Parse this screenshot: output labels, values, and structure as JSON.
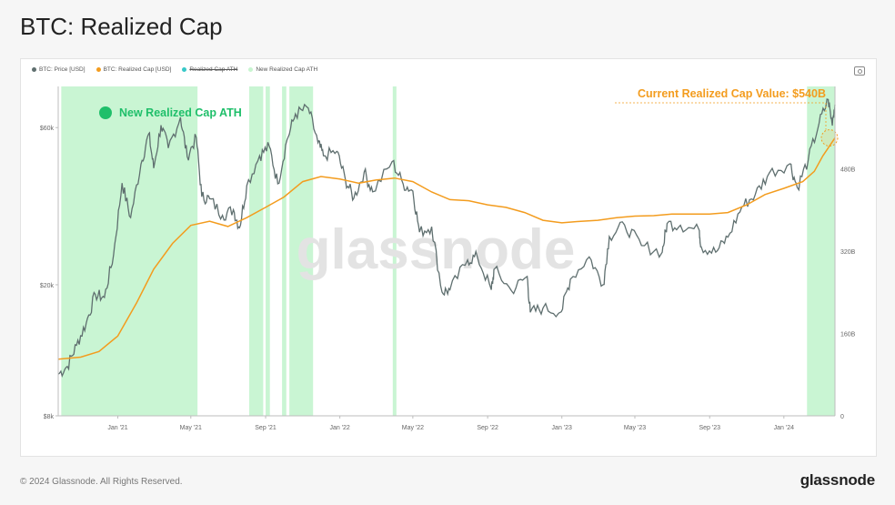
{
  "page": {
    "title": "BTC: Realized Cap",
    "copyright": "© 2024 Glassnode. All Rights Reserved.",
    "logo_text": "glassnode",
    "watermark": "glassnode"
  },
  "legend": [
    {
      "label": "BTC: Price [USD]",
      "color": "#5f6f6f",
      "strike": false
    },
    {
      "label": "BTC: Realized Cap [USD]",
      "color": "#f39c1e",
      "strike": false
    },
    {
      "label": "Realized Cap ATH",
      "color": "#38c8c8",
      "strike": true
    },
    {
      "label": "New Realized Cap ATH",
      "color": "#c8f5d0",
      "strike": false
    }
  ],
  "annotations": {
    "ath_label": "New Realized Cap ATH",
    "current_value_label": "Current Realized Cap Value: $540B"
  },
  "colors": {
    "price": "#5f6f6f",
    "realized_cap": "#f39c1e",
    "ath_band": "#c9f5d3",
    "ath_dot": "#1fbf6a",
    "highlight": "#f39c1e"
  },
  "chart_data": {
    "type": "line",
    "x_range": [
      "2020-09-25",
      "2024-03-25"
    ],
    "x_ticks": [
      "Jan '21",
      "May '21",
      "Sep '21",
      "Jan '22",
      "May '22",
      "Sep '22",
      "Jan '23",
      "May '23",
      "Sep '23",
      "Jan '24"
    ],
    "x_tick_dates": [
      "2021-01-01",
      "2021-05-01",
      "2021-09-01",
      "2022-01-01",
      "2022-05-01",
      "2022-09-01",
      "2023-01-01",
      "2023-05-01",
      "2023-09-01",
      "2024-01-01"
    ],
    "y_left": {
      "scale": "log",
      "range": [
        8000,
        80000
      ],
      "ticks": [
        8000,
        20000,
        60000
      ],
      "tick_labels": [
        "$8k",
        "$20k",
        "$60k"
      ]
    },
    "y_right": {
      "scale": "linear",
      "range": [
        0,
        640
      ],
      "ticks": [
        0,
        160,
        320,
        480
      ],
      "tick_labels": [
        "0",
        "160B",
        "320B",
        "480B"
      ]
    },
    "series": [
      {
        "name": "BTC: Price [USD]",
        "axis": "left",
        "points": [
          [
            "2020-09-25",
            10700
          ],
          [
            "2020-10-10",
            11300
          ],
          [
            "2020-10-25",
            13100
          ],
          [
            "2020-11-10",
            15300
          ],
          [
            "2020-11-25",
            18700
          ],
          [
            "2020-12-10",
            18300
          ],
          [
            "2020-12-25",
            24700
          ],
          [
            "2021-01-08",
            40700
          ],
          [
            "2021-01-22",
            32000
          ],
          [
            "2021-02-08",
            46500
          ],
          [
            "2021-02-21",
            57500
          ],
          [
            "2021-03-01",
            45200
          ],
          [
            "2021-03-13",
            61000
          ],
          [
            "2021-03-25",
            52000
          ],
          [
            "2021-04-14",
            64500
          ],
          [
            "2021-04-25",
            49000
          ],
          [
            "2021-05-10",
            56000
          ],
          [
            "2021-05-19",
            37000
          ],
          [
            "2021-06-01",
            36500
          ],
          [
            "2021-06-22",
            32500
          ],
          [
            "2021-07-10",
            33800
          ],
          [
            "2021-07-20",
            29800
          ],
          [
            "2021-08-01",
            40000
          ],
          [
            "2021-08-22",
            49300
          ],
          [
            "2021-09-07",
            52600
          ],
          [
            "2021-09-21",
            40500
          ],
          [
            "2021-10-06",
            55000
          ],
          [
            "2021-10-20",
            66000
          ],
          [
            "2021-11-10",
            68800
          ],
          [
            "2021-11-26",
            54000
          ],
          [
            "2021-12-05",
            49300
          ],
          [
            "2021-12-27",
            50800
          ],
          [
            "2022-01-10",
            41800
          ],
          [
            "2022-01-24",
            36600
          ],
          [
            "2022-02-10",
            44000
          ],
          [
            "2022-02-24",
            38300
          ],
          [
            "2022-03-28",
            47300
          ],
          [
            "2022-04-15",
            40500
          ],
          [
            "2022-05-01",
            38500
          ],
          [
            "2022-05-12",
            28900
          ],
          [
            "2022-06-01",
            30000
          ],
          [
            "2022-06-18",
            19000
          ],
          [
            "2022-07-01",
            19300
          ],
          [
            "2022-07-30",
            23800
          ],
          [
            "2022-08-15",
            24300
          ],
          [
            "2022-09-07",
            19300
          ],
          [
            "2022-09-12",
            22300
          ],
          [
            "2022-10-10",
            19200
          ],
          [
            "2022-11-05",
            21200
          ],
          [
            "2022-11-10",
            16500
          ],
          [
            "2022-12-01",
            17000
          ],
          [
            "2022-12-31",
            16550
          ],
          [
            "2023-01-15",
            20800
          ],
          [
            "2023-02-15",
            24300
          ],
          [
            "2023-03-10",
            20000
          ],
          [
            "2023-03-20",
            28000
          ],
          [
            "2023-04-14",
            30400
          ],
          [
            "2023-05-12",
            26300
          ],
          [
            "2023-06-15",
            25100
          ],
          [
            "2023-06-23",
            30700
          ],
          [
            "2023-07-15",
            30300
          ],
          [
            "2023-08-15",
            29200
          ],
          [
            "2023-08-18",
            26100
          ],
          [
            "2023-09-11",
            25100
          ],
          [
            "2023-10-01",
            27900
          ],
          [
            "2023-10-24",
            34500
          ],
          [
            "2023-11-15",
            37600
          ],
          [
            "2023-12-08",
            43700
          ],
          [
            "2024-01-11",
            46600
          ],
          [
            "2024-01-23",
            39500
          ],
          [
            "2024-02-10",
            47800
          ],
          [
            "2024-02-28",
            62000
          ],
          [
            "2024-03-14",
            73000
          ],
          [
            "2024-03-20",
            62000
          ],
          [
            "2024-03-25",
            70500
          ]
        ]
      },
      {
        "name": "BTC: Realized Cap [USD]",
        "axis": "right",
        "points": [
          [
            "2020-09-25",
            110
          ],
          [
            "2020-11-01",
            114
          ],
          [
            "2020-12-01",
            125
          ],
          [
            "2021-01-01",
            155
          ],
          [
            "2021-02-01",
            220
          ],
          [
            "2021-03-01",
            285
          ],
          [
            "2021-04-01",
            335
          ],
          [
            "2021-05-01",
            370
          ],
          [
            "2021-06-01",
            378
          ],
          [
            "2021-07-01",
            368
          ],
          [
            "2021-08-01",
            385
          ],
          [
            "2021-09-01",
            405
          ],
          [
            "2021-10-01",
            425
          ],
          [
            "2021-11-01",
            455
          ],
          [
            "2021-12-01",
            465
          ],
          [
            "2022-01-01",
            460
          ],
          [
            "2022-02-01",
            452
          ],
          [
            "2022-03-01",
            458
          ],
          [
            "2022-04-01",
            462
          ],
          [
            "2022-05-01",
            455
          ],
          [
            "2022-06-01",
            435
          ],
          [
            "2022-07-01",
            420
          ],
          [
            "2022-08-01",
            418
          ],
          [
            "2022-09-01",
            410
          ],
          [
            "2022-10-01",
            405
          ],
          [
            "2022-11-01",
            395
          ],
          [
            "2022-12-01",
            380
          ],
          [
            "2023-01-01",
            375
          ],
          [
            "2023-02-01",
            378
          ],
          [
            "2023-03-01",
            380
          ],
          [
            "2023-04-01",
            385
          ],
          [
            "2023-05-01",
            388
          ],
          [
            "2023-06-01",
            389
          ],
          [
            "2023-07-01",
            392
          ],
          [
            "2023-08-01",
            392
          ],
          [
            "2023-09-01",
            392
          ],
          [
            "2023-10-01",
            395
          ],
          [
            "2023-11-01",
            410
          ],
          [
            "2023-12-01",
            430
          ],
          [
            "2024-01-01",
            442
          ],
          [
            "2024-02-01",
            455
          ],
          [
            "2024-02-20",
            475
          ],
          [
            "2024-03-05",
            505
          ],
          [
            "2024-03-25",
            540
          ]
        ]
      }
    ],
    "ath_periods": [
      [
        "2020-09-30",
        "2021-05-12"
      ],
      [
        "2021-08-05",
        "2021-08-28"
      ],
      [
        "2021-09-01",
        "2021-09-08"
      ],
      [
        "2021-09-28",
        "2021-10-05"
      ],
      [
        "2021-10-10",
        "2021-11-18"
      ],
      [
        "2022-03-29",
        "2022-04-04"
      ],
      [
        "2024-02-08",
        "2024-03-25"
      ]
    ]
  }
}
